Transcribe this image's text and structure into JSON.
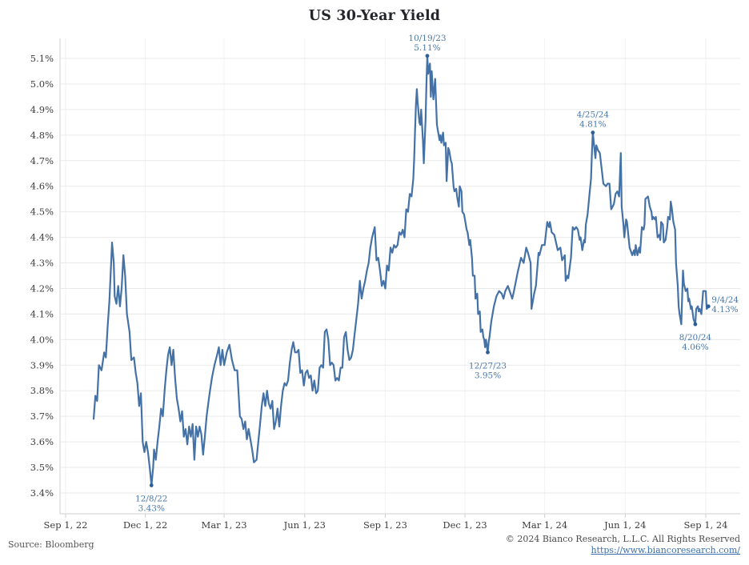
{
  "title": "US 30-Year Yield",
  "footer": {
    "source": "Source: Bloomberg",
    "copyright": "© 2024 Bianco Research, L.L.C. All Rights Reserved",
    "link": "https://www.biancoresearch.com/"
  },
  "chart_data": {
    "type": "line",
    "title": "US 30-Year Yield",
    "series_name": "US 30-Year Yield",
    "line_color": "#4472a6",
    "marker_color": "#2d5f96",
    "annotation_color": "#4a78ab",
    "grid": true,
    "ylim": [
      3.4,
      5.1
    ],
    "y_tick_step": 0.1,
    "y_tick_labels": [
      "3.4%",
      "3.5%",
      "3.6%",
      "3.7%",
      "3.8%",
      "3.9%",
      "4.0%",
      "4.1%",
      "4.2%",
      "4.3%",
      "4.4%",
      "4.5%",
      "4.6%",
      "4.7%",
      "4.8%",
      "4.9%",
      "5.0%",
      "5.1%"
    ],
    "x_unit": "days since Sep 1, 2022",
    "x_tick_days": [
      0,
      91,
      181,
      273,
      365,
      456,
      547,
      639,
      731
    ],
    "x_tick_labels": [
      "Sep 1, 22",
      "Dec 1, 22",
      "Mar 1, 23",
      "Jun 1, 23",
      "Sep 1, 23",
      "Dec 1, 23",
      "Mar 1, 24",
      "Jun 1, 24",
      "Sep 1, 24"
    ],
    "annotations": [
      {
        "date": "12/8/22",
        "value": "3.43%",
        "day": 98,
        "y": 3.43,
        "placement": "below"
      },
      {
        "date": "10/19/23",
        "value": "5.11%",
        "day": 413,
        "y": 5.11,
        "placement": "above"
      },
      {
        "date": "12/27/23",
        "value": "3.95%",
        "day": 482,
        "y": 3.95,
        "placement": "below"
      },
      {
        "date": "4/25/24",
        "value": "4.81%",
        "day": 602,
        "y": 4.81,
        "placement": "above"
      },
      {
        "date": "8/20/24",
        "value": "4.06%",
        "day": 719,
        "y": 4.06,
        "placement": "below"
      },
      {
        "date": "9/4/24",
        "value": "4.13%",
        "day": 734,
        "y": 4.13,
        "placement": "right"
      }
    ],
    "points": [
      [
        32,
        3.69
      ],
      [
        34,
        3.78
      ],
      [
        36,
        3.76
      ],
      [
        38,
        3.9
      ],
      [
        41,
        3.88
      ],
      [
        44,
        3.95
      ],
      [
        46,
        3.93
      ],
      [
        48,
        4.05
      ],
      [
        50,
        4.15
      ],
      [
        52,
        4.3
      ],
      [
        53,
        4.38
      ],
      [
        55,
        4.3
      ],
      [
        56,
        4.17
      ],
      [
        58,
        4.14
      ],
      [
        60,
        4.21
      ],
      [
        62,
        4.13
      ],
      [
        64,
        4.2
      ],
      [
        66,
        4.33
      ],
      [
        68,
        4.25
      ],
      [
        70,
        4.1
      ],
      [
        73,
        4.03
      ],
      [
        75,
        3.92
      ],
      [
        78,
        3.93
      ],
      [
        80,
        3.87
      ],
      [
        82,
        3.83
      ],
      [
        84,
        3.74
      ],
      [
        86,
        3.79
      ],
      [
        88,
        3.6
      ],
      [
        90,
        3.56
      ],
      [
        92,
        3.6
      ],
      [
        94,
        3.56
      ],
      [
        96,
        3.5
      ],
      [
        98,
        3.43
      ],
      [
        100,
        3.5
      ],
      [
        101,
        3.57
      ],
      [
        103,
        3.53
      ],
      [
        105,
        3.6
      ],
      [
        107,
        3.66
      ],
      [
        109,
        3.73
      ],
      [
        111,
        3.7
      ],
      [
        113,
        3.8
      ],
      [
        115,
        3.88
      ],
      [
        117,
        3.94
      ],
      [
        119,
        3.97
      ],
      [
        121,
        3.9
      ],
      [
        123,
        3.96
      ],
      [
        125,
        3.85
      ],
      [
        127,
        3.77
      ],
      [
        129,
        3.73
      ],
      [
        131,
        3.68
      ],
      [
        133,
        3.72
      ],
      [
        135,
        3.62
      ],
      [
        137,
        3.65
      ],
      [
        139,
        3.59
      ],
      [
        141,
        3.66
      ],
      [
        143,
        3.62
      ],
      [
        145,
        3.67
      ],
      [
        147,
        3.53
      ],
      [
        149,
        3.66
      ],
      [
        151,
        3.62
      ],
      [
        153,
        3.66
      ],
      [
        155,
        3.63
      ],
      [
        157,
        3.55
      ],
      [
        159,
        3.62
      ],
      [
        161,
        3.7
      ],
      [
        164,
        3.78
      ],
      [
        167,
        3.85
      ],
      [
        170,
        3.9
      ],
      [
        173,
        3.94
      ],
      [
        175,
        3.97
      ],
      [
        177,
        3.9
      ],
      [
        179,
        3.96
      ],
      [
        181,
        3.9
      ],
      [
        184,
        3.95
      ],
      [
        187,
        3.98
      ],
      [
        190,
        3.92
      ],
      [
        193,
        3.88
      ],
      [
        196,
        3.88
      ],
      [
        199,
        3.7
      ],
      [
        201,
        3.69
      ],
      [
        203,
        3.65
      ],
      [
        205,
        3.68
      ],
      [
        207,
        3.61
      ],
      [
        209,
        3.65
      ],
      [
        211,
        3.61
      ],
      [
        213,
        3.57
      ],
      [
        215,
        3.52
      ],
      [
        218,
        3.53
      ],
      [
        220,
        3.6
      ],
      [
        222,
        3.67
      ],
      [
        224,
        3.74
      ],
      [
        226,
        3.79
      ],
      [
        228,
        3.74
      ],
      [
        230,
        3.8
      ],
      [
        232,
        3.75
      ],
      [
        234,
        3.73
      ],
      [
        236,
        3.76
      ],
      [
        238,
        3.65
      ],
      [
        240,
        3.68
      ],
      [
        242,
        3.73
      ],
      [
        244,
        3.66
      ],
      [
        246,
        3.74
      ],
      [
        248,
        3.8
      ],
      [
        250,
        3.83
      ],
      [
        252,
        3.82
      ],
      [
        254,
        3.84
      ],
      [
        256,
        3.91
      ],
      [
        258,
        3.96
      ],
      [
        260,
        3.99
      ],
      [
        262,
        3.95
      ],
      [
        264,
        3.95
      ],
      [
        266,
        3.96
      ],
      [
        268,
        3.87
      ],
      [
        270,
        3.88
      ],
      [
        272,
        3.82
      ],
      [
        274,
        3.87
      ],
      [
        276,
        3.88
      ],
      [
        278,
        3.85
      ],
      [
        280,
        3.86
      ],
      [
        282,
        3.8
      ],
      [
        284,
        3.84
      ],
      [
        286,
        3.79
      ],
      [
        288,
        3.8
      ],
      [
        290,
        3.89
      ],
      [
        292,
        3.9
      ],
      [
        294,
        3.89
      ],
      [
        296,
        4.03
      ],
      [
        298,
        4.04
      ],
      [
        300,
        4.0
      ],
      [
        302,
        3.9
      ],
      [
        304,
        3.91
      ],
      [
        306,
        3.9
      ],
      [
        308,
        3.84
      ],
      [
        310,
        3.85
      ],
      [
        312,
        3.84
      ],
      [
        314,
        3.89
      ],
      [
        316,
        3.89
      ],
      [
        318,
        4.01
      ],
      [
        320,
        4.03
      ],
      [
        322,
        3.96
      ],
      [
        324,
        3.92
      ],
      [
        326,
        3.93
      ],
      [
        328,
        3.96
      ],
      [
        330,
        4.02
      ],
      [
        332,
        4.08
      ],
      [
        334,
        4.14
      ],
      [
        336,
        4.23
      ],
      [
        338,
        4.16
      ],
      [
        340,
        4.2
      ],
      [
        342,
        4.23
      ],
      [
        344,
        4.27
      ],
      [
        346,
        4.3
      ],
      [
        348,
        4.36
      ],
      [
        350,
        4.4
      ],
      [
        353,
        4.44
      ],
      [
        355,
        4.31
      ],
      [
        357,
        4.32
      ],
      [
        359,
        4.27
      ],
      [
        361,
        4.21
      ],
      [
        363,
        4.23
      ],
      [
        365,
        4.2
      ],
      [
        367,
        4.29
      ],
      [
        369,
        4.27
      ],
      [
        371,
        4.36
      ],
      [
        373,
        4.34
      ],
      [
        375,
        4.37
      ],
      [
        377,
        4.36
      ],
      [
        379,
        4.37
      ],
      [
        381,
        4.42
      ],
      [
        383,
        4.41
      ],
      [
        385,
        4.43
      ],
      [
        387,
        4.4
      ],
      [
        389,
        4.51
      ],
      [
        391,
        4.5
      ],
      [
        393,
        4.57
      ],
      [
        395,
        4.56
      ],
      [
        397,
        4.63
      ],
      [
        398,
        4.71
      ],
      [
        399,
        4.82
      ],
      [
        400,
        4.92
      ],
      [
        401,
        4.98
      ],
      [
        402,
        4.93
      ],
      [
        404,
        4.85
      ],
      [
        405,
        4.84
      ],
      [
        406,
        4.9
      ],
      [
        408,
        4.78
      ],
      [
        409,
        4.69
      ],
      [
        411,
        4.86
      ],
      [
        412,
        5.0
      ],
      [
        413,
        5.11
      ],
      [
        414,
        5.04
      ],
      [
        416,
        5.08
      ],
      [
        417,
        4.95
      ],
      [
        418,
        5.05
      ],
      [
        420,
        4.94
      ],
      [
        422,
        5.02
      ],
      [
        424,
        4.84
      ],
      [
        425,
        4.82
      ],
      [
        427,
        4.78
      ],
      [
        428,
        4.8
      ],
      [
        429,
        4.77
      ],
      [
        431,
        4.81
      ],
      [
        432,
        4.76
      ],
      [
        434,
        4.77
      ],
      [
        435,
        4.62
      ],
      [
        437,
        4.75
      ],
      [
        438,
        4.74
      ],
      [
        440,
        4.7
      ],
      [
        441,
        4.69
      ],
      [
        443,
        4.6
      ],
      [
        444,
        4.58
      ],
      [
        446,
        4.59
      ],
      [
        447,
        4.56
      ],
      [
        449,
        4.52
      ],
      [
        450,
        4.6
      ],
      [
        452,
        4.58
      ],
      [
        453,
        4.5
      ],
      [
        455,
        4.49
      ],
      [
        456,
        4.47
      ],
      [
        458,
        4.43
      ],
      [
        459,
        4.42
      ],
      [
        461,
        4.37
      ],
      [
        462,
        4.39
      ],
      [
        464,
        4.32
      ],
      [
        465,
        4.25
      ],
      [
        467,
        4.25
      ],
      [
        468,
        4.16
      ],
      [
        470,
        4.18
      ],
      [
        471,
        4.1
      ],
      [
        473,
        4.11
      ],
      [
        474,
        4.03
      ],
      [
        476,
        4.04
      ],
      [
        477,
        4.01
      ],
      [
        478,
        4.0
      ],
      [
        479,
        3.97
      ],
      [
        480,
        4.0
      ],
      [
        482,
        3.95
      ],
      [
        483,
        3.99
      ],
      [
        484,
        4.01
      ],
      [
        486,
        4.07
      ],
      [
        489,
        4.13
      ],
      [
        492,
        4.17
      ],
      [
        495,
        4.19
      ],
      [
        498,
        4.18
      ],
      [
        500,
        4.16
      ],
      [
        502,
        4.19
      ],
      [
        505,
        4.21
      ],
      [
        508,
        4.18
      ],
      [
        510,
        4.16
      ],
      [
        512,
        4.19
      ],
      [
        516,
        4.26
      ],
      [
        520,
        4.32
      ],
      [
        523,
        4.3
      ],
      [
        526,
        4.36
      ],
      [
        528,
        4.34
      ],
      [
        531,
        4.3
      ],
      [
        532,
        4.12
      ],
      [
        535,
        4.18
      ],
      [
        537,
        4.21
      ],
      [
        540,
        4.34
      ],
      [
        541,
        4.33
      ],
      [
        544,
        4.37
      ],
      [
        547,
        4.37
      ],
      [
        550,
        4.46
      ],
      [
        552,
        4.44
      ],
      [
        553,
        4.46
      ],
      [
        555,
        4.42
      ],
      [
        558,
        4.41
      ],
      [
        562,
        4.35
      ],
      [
        565,
        4.36
      ],
      [
        567,
        4.31
      ],
      [
        570,
        4.33
      ],
      [
        571,
        4.23
      ],
      [
        573,
        4.25
      ],
      [
        574,
        4.24
      ],
      [
        577,
        4.32
      ],
      [
        579,
        4.44
      ],
      [
        581,
        4.43
      ],
      [
        583,
        4.44
      ],
      [
        585,
        4.43
      ],
      [
        587,
        4.39
      ],
      [
        588,
        4.4
      ],
      [
        590,
        4.35
      ],
      [
        592,
        4.39
      ],
      [
        593,
        4.38
      ],
      [
        594,
        4.45
      ],
      [
        596,
        4.49
      ],
      [
        598,
        4.56
      ],
      [
        600,
        4.63
      ],
      [
        601,
        4.73
      ],
      [
        602,
        4.81
      ],
      [
        605,
        4.71
      ],
      [
        606,
        4.76
      ],
      [
        608,
        4.74
      ],
      [
        610,
        4.73
      ],
      [
        612,
        4.67
      ],
      [
        614,
        4.61
      ],
      [
        617,
        4.6
      ],
      [
        619,
        4.61
      ],
      [
        621,
        4.61
      ],
      [
        623,
        4.51
      ],
      [
        626,
        4.53
      ],
      [
        628,
        4.57
      ],
      [
        630,
        4.58
      ],
      [
        632,
        4.56
      ],
      [
        633,
        4.64
      ],
      [
        634,
        4.73
      ],
      [
        635,
        4.52
      ],
      [
        637,
        4.45
      ],
      [
        638,
        4.4
      ],
      [
        640,
        4.47
      ],
      [
        641,
        4.46
      ],
      [
        644,
        4.36
      ],
      [
        647,
        4.33
      ],
      [
        649,
        4.35
      ],
      [
        650,
        4.33
      ],
      [
        651,
        4.37
      ],
      [
        653,
        4.33
      ],
      [
        655,
        4.36
      ],
      [
        656,
        4.34
      ],
      [
        658,
        4.44
      ],
      [
        660,
        4.43
      ],
      [
        661,
        4.45
      ],
      [
        662,
        4.55
      ],
      [
        665,
        4.56
      ],
      [
        667,
        4.52
      ],
      [
        669,
        4.5
      ],
      [
        670,
        4.47
      ],
      [
        671,
        4.48
      ],
      [
        673,
        4.47
      ],
      [
        674,
        4.48
      ],
      [
        676,
        4.4
      ],
      [
        678,
        4.41
      ],
      [
        679,
        4.39
      ],
      [
        680,
        4.46
      ],
      [
        682,
        4.45
      ],
      [
        683,
        4.38
      ],
      [
        685,
        4.39
      ],
      [
        687,
        4.44
      ],
      [
        688,
        4.48
      ],
      [
        690,
        4.47
      ],
      [
        691,
        4.54
      ],
      [
        692,
        4.52
      ],
      [
        694,
        4.46
      ],
      [
        696,
        4.43
      ],
      [
        697,
        4.3
      ],
      [
        699,
        4.21
      ],
      [
        700,
        4.13
      ],
      [
        701,
        4.1
      ],
      [
        703,
        4.06
      ],
      [
        705,
        4.27
      ],
      [
        706,
        4.22
      ],
      [
        708,
        4.19
      ],
      [
        710,
        4.2
      ],
      [
        711,
        4.15
      ],
      [
        712,
        4.16
      ],
      [
        714,
        4.12
      ],
      [
        715,
        4.13
      ],
      [
        717,
        4.08
      ],
      [
        719,
        4.06
      ],
      [
        720,
        4.12
      ],
      [
        722,
        4.13
      ],
      [
        723,
        4.11
      ],
      [
        724,
        4.12
      ],
      [
        726,
        4.1
      ],
      [
        728,
        4.19
      ],
      [
        731,
        4.19
      ],
      [
        732,
        4.12
      ],
      [
        734,
        4.13
      ]
    ]
  }
}
